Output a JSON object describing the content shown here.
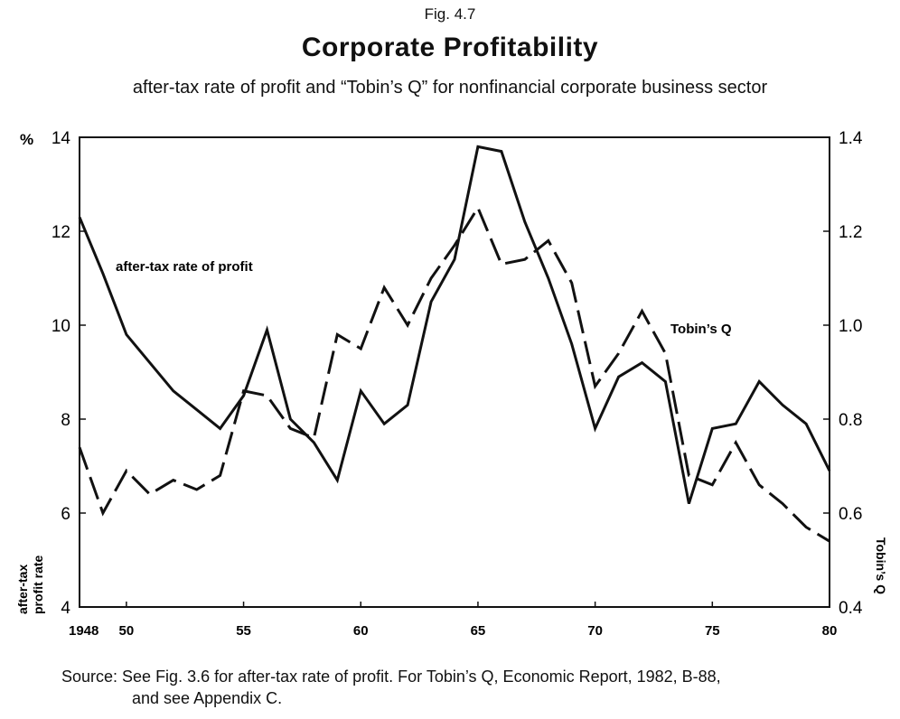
{
  "figure_label": "Fig. 4.7",
  "title": "Corporate Profitability",
  "subtitle": "after-tax rate of profit and “Tobin’s Q” for nonfinancial corporate business sector",
  "source_line1": "Source: See Fig. 3.6 for after-tax rate of profit. For Tobin’s Q, Economic Report, 1982, B-88,",
  "source_line2": "and see  Appendix C.",
  "chart_data": {
    "type": "line",
    "x": [
      1948,
      1949,
      1950,
      1951,
      1952,
      1953,
      1954,
      1955,
      1956,
      1957,
      1958,
      1959,
      1960,
      1961,
      1962,
      1963,
      1964,
      1965,
      1966,
      1967,
      1968,
      1969,
      1970,
      1971,
      1972,
      1973,
      1974,
      1975,
      1976,
      1977,
      1978,
      1979,
      1980
    ],
    "xlim": [
      1948,
      1980
    ],
    "x_ticks": [
      1948,
      1950,
      1955,
      1960,
      1965,
      1970,
      1975,
      1980
    ],
    "x_tick_labels": [
      "1948",
      "50",
      "55",
      "60",
      "65",
      "70",
      "75",
      "80"
    ],
    "y_left": {
      "label_line1": "after-tax",
      "label_line2": "profit rate",
      "unit_symbol": "%",
      "lim": [
        4,
        14
      ],
      "ticks": [
        4,
        6,
        8,
        10,
        12,
        14
      ]
    },
    "y_right": {
      "label": "Tobin’s Q",
      "lim": [
        0.4,
        1.4
      ],
      "ticks": [
        0.4,
        0.6,
        0.8,
        1.0,
        1.2,
        1.4
      ],
      "tick_labels": [
        "0.4",
        "0.6",
        "0.8",
        "1.0",
        "1.2",
        "1.4"
      ]
    },
    "series": [
      {
        "name": "after-tax rate of profit",
        "axis": "left",
        "style": "solid",
        "color": "#111111",
        "values": [
          12.3,
          11.1,
          9.8,
          9.2,
          8.6,
          8.2,
          7.8,
          8.5,
          9.9,
          8.0,
          7.5,
          6.7,
          8.6,
          7.9,
          8.3,
          10.5,
          11.4,
          13.8,
          13.7,
          12.2,
          11.0,
          9.6,
          7.8,
          8.9,
          9.2,
          8.8,
          6.2,
          7.8,
          7.9,
          8.8,
          8.3,
          7.9,
          6.9
        ]
      },
      {
        "name": "Tobin’s Q",
        "axis": "right",
        "style": "dashed",
        "color": "#111111",
        "values": [
          0.74,
          0.6,
          0.69,
          0.64,
          0.67,
          0.65,
          0.68,
          0.86,
          0.85,
          0.78,
          0.76,
          0.98,
          0.95,
          1.08,
          1.0,
          1.1,
          1.17,
          1.25,
          1.13,
          1.14,
          1.18,
          1.09,
          0.87,
          0.94,
          1.03,
          0.94,
          0.68,
          0.66,
          0.75,
          0.66,
          0.62,
          0.57,
          0.54
        ]
      }
    ],
    "annotations": [
      {
        "text": "after-tax rate of profit",
        "series": "after-tax rate of profit"
      },
      {
        "text": "Tobin’s Q",
        "series": "Tobin’s Q"
      }
    ]
  }
}
